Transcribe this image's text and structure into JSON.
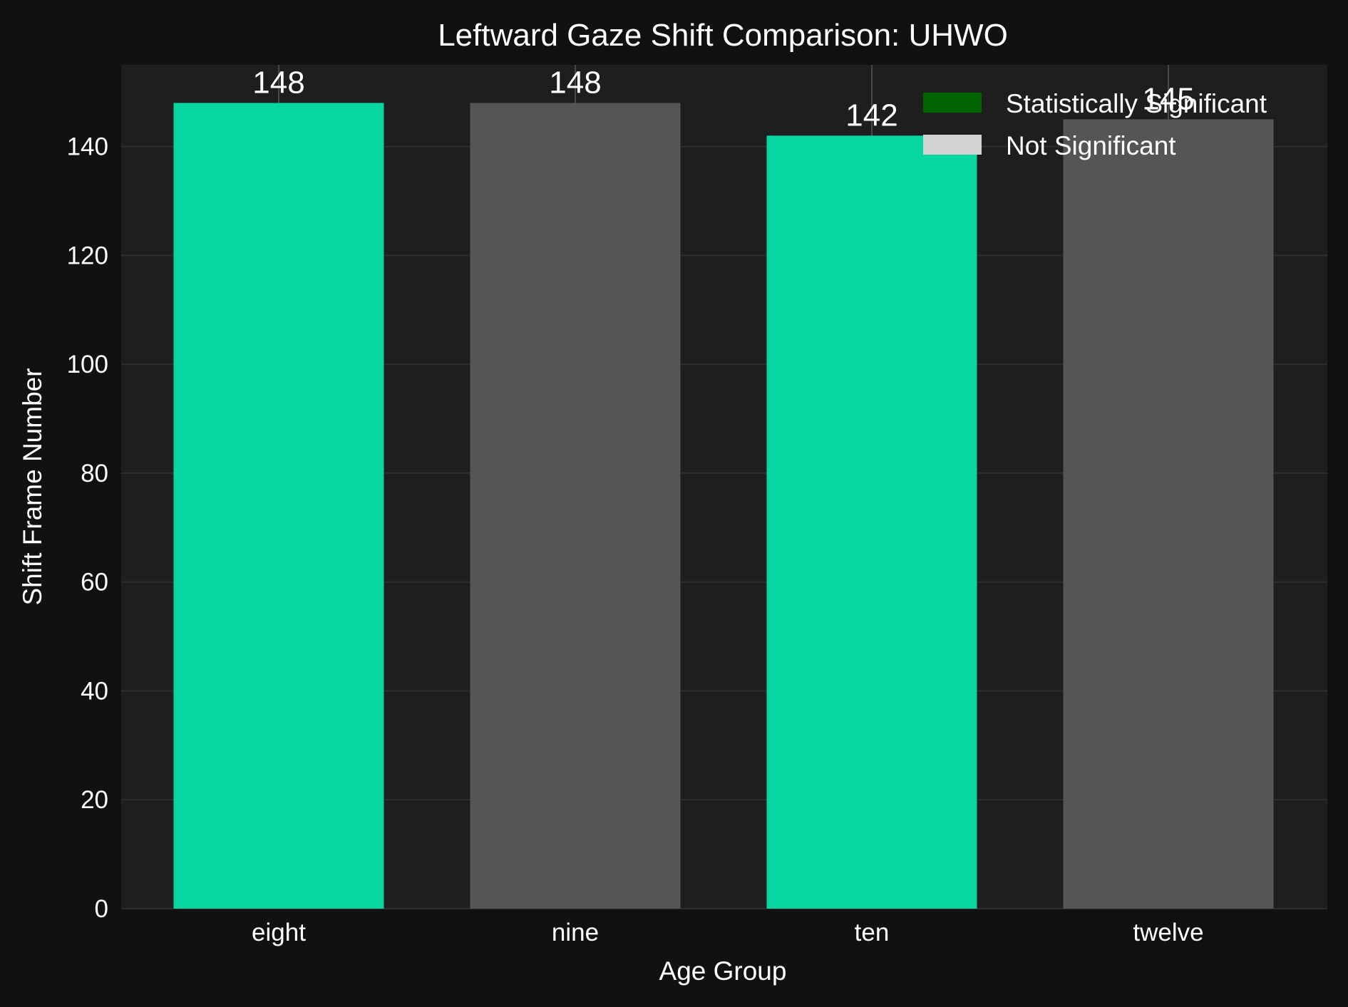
{
  "colors": {
    "figure_bg": "#111111",
    "plot_bg": "#1e1e1e",
    "grid": "#2e2e2e",
    "significant_bar": "#06d6a0",
    "not_significant_bar": "#555555",
    "legend_significant": "#006400",
    "legend_not_significant": "#d3d3d3",
    "text": "#ffffff"
  },
  "chart_data": {
    "type": "bar",
    "title": "Leftward Gaze Shift Comparison: UHWO",
    "xlabel": "Age Group",
    "ylabel": "Shift Frame Number",
    "categories": [
      "eight",
      "nine",
      "ten",
      "twelve"
    ],
    "values": [
      148,
      148,
      142,
      145
    ],
    "value_labels": [
      "148",
      "148",
      "142",
      "145"
    ],
    "significant": [
      true,
      false,
      true,
      false
    ],
    "ylim": [
      0,
      155
    ],
    "yticks": [
      0,
      20,
      40,
      60,
      80,
      100,
      120,
      140
    ],
    "ytick_labels": [
      "0",
      "20",
      "40",
      "60",
      "80",
      "100",
      "120",
      "140"
    ],
    "grid": true,
    "legend": {
      "placement": "top-right",
      "entries": [
        "Statistically Significant",
        "Not Significant"
      ]
    }
  }
}
